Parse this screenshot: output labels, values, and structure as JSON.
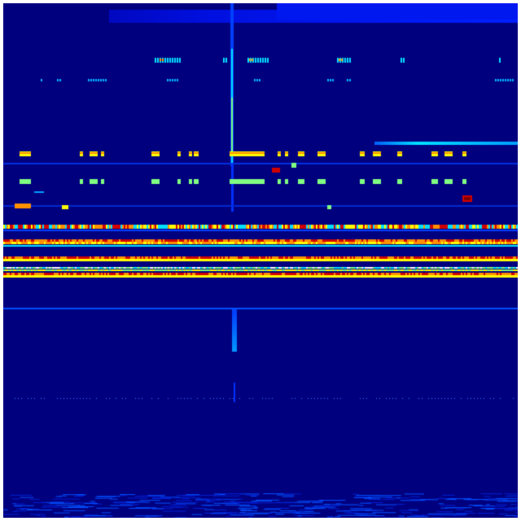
{
  "image": {
    "kind": "spectrogram-heatmap",
    "colormap": "jet",
    "colors": {
      "background": "#00007f",
      "low": "#0000c8",
      "mid_low": "#0040ff",
      "cyan": "#00e0ff",
      "green": "#80ff80",
      "yellow": "#ffff00",
      "orange": "#ff9000",
      "red": "#d00000",
      "border": "#ffffff"
    }
  }
}
